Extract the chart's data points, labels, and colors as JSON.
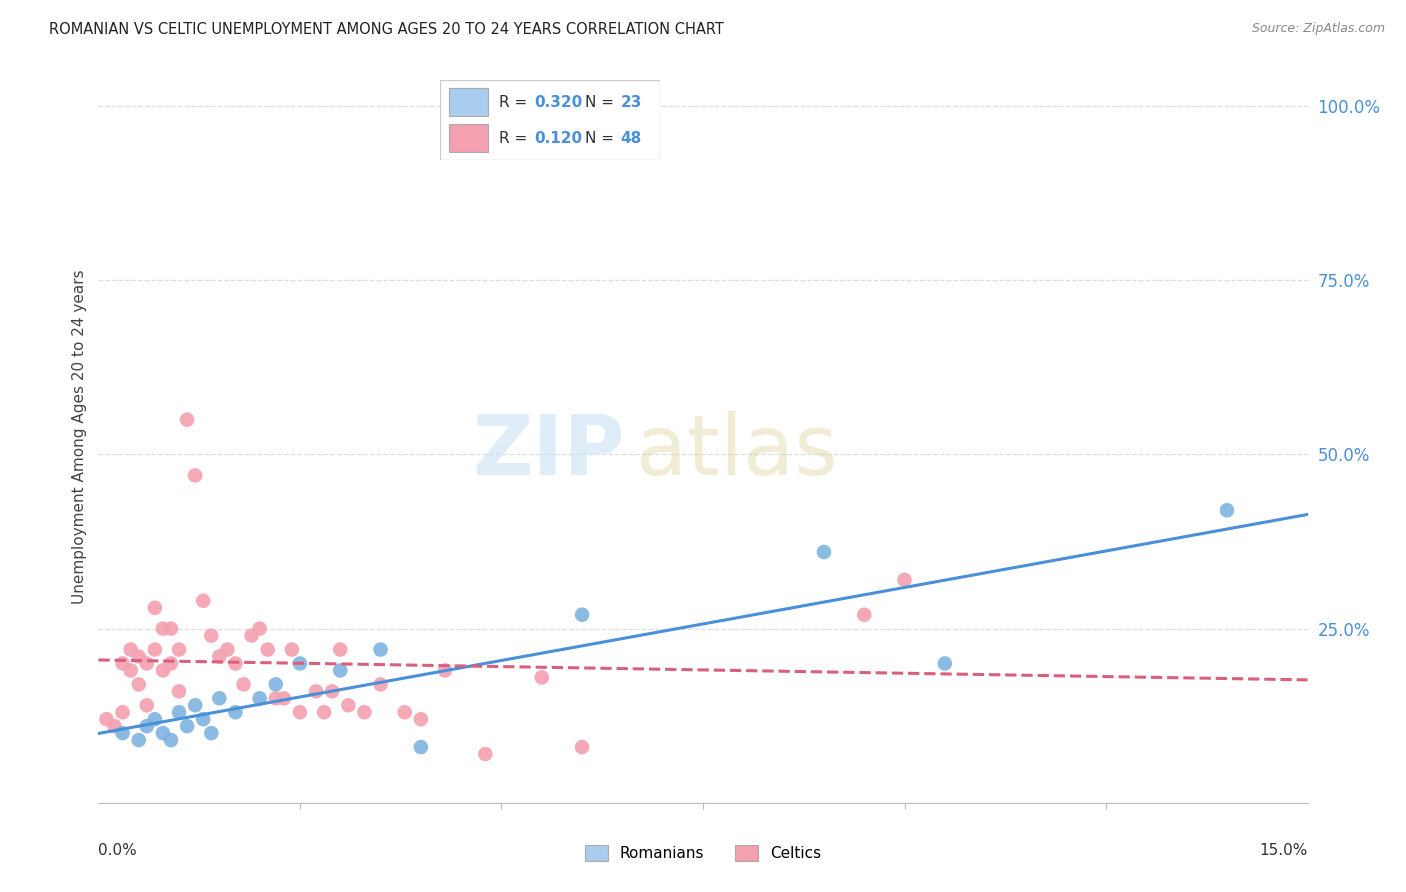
{
  "title": "ROMANIAN VS CELTIC UNEMPLOYMENT AMONG AGES 20 TO 24 YEARS CORRELATION CHART",
  "source": "Source: ZipAtlas.com",
  "ylabel": "Unemployment Among Ages 20 to 24 years",
  "right_ytick_vals": [
    1.0,
    0.75,
    0.5,
    0.25
  ],
  "right_ytick_labels": [
    "100.0%",
    "75.0%",
    "50.0%",
    "25.0%"
  ],
  "xmin": 0.0,
  "xmax": 0.15,
  "ymin": 0.0,
  "ymax": 1.05,
  "romanian_color": "#7eb3e0",
  "celtic_color": "#f4a0b0",
  "romanian_line_color": "#4a90d9",
  "celtic_line_color": "#d9607a",
  "romanian_R": "0.320",
  "romanian_N": "23",
  "celtic_R": "0.120",
  "celtic_N": "48",
  "romanians_scatter": [
    [
      0.003,
      0.1
    ],
    [
      0.005,
      0.09
    ],
    [
      0.006,
      0.11
    ],
    [
      0.007,
      0.12
    ],
    [
      0.008,
      0.1
    ],
    [
      0.009,
      0.09
    ],
    [
      0.01,
      0.13
    ],
    [
      0.011,
      0.11
    ],
    [
      0.012,
      0.14
    ],
    [
      0.013,
      0.12
    ],
    [
      0.014,
      0.1
    ],
    [
      0.015,
      0.15
    ],
    [
      0.017,
      0.13
    ],
    [
      0.02,
      0.15
    ],
    [
      0.022,
      0.17
    ],
    [
      0.025,
      0.2
    ],
    [
      0.03,
      0.19
    ],
    [
      0.035,
      0.22
    ],
    [
      0.04,
      0.08
    ],
    [
      0.06,
      0.27
    ],
    [
      0.09,
      0.36
    ],
    [
      0.105,
      0.2
    ],
    [
      0.14,
      0.42
    ]
  ],
  "celtics_scatter": [
    [
      0.001,
      0.12
    ],
    [
      0.002,
      0.11
    ],
    [
      0.003,
      0.13
    ],
    [
      0.003,
      0.2
    ],
    [
      0.004,
      0.22
    ],
    [
      0.004,
      0.19
    ],
    [
      0.005,
      0.21
    ],
    [
      0.005,
      0.17
    ],
    [
      0.006,
      0.2
    ],
    [
      0.006,
      0.14
    ],
    [
      0.007,
      0.28
    ],
    [
      0.007,
      0.22
    ],
    [
      0.008,
      0.25
    ],
    [
      0.008,
      0.19
    ],
    [
      0.009,
      0.25
    ],
    [
      0.009,
      0.2
    ],
    [
      0.01,
      0.22
    ],
    [
      0.01,
      0.16
    ],
    [
      0.011,
      0.55
    ],
    [
      0.012,
      0.47
    ],
    [
      0.013,
      0.29
    ],
    [
      0.014,
      0.24
    ],
    [
      0.015,
      0.21
    ],
    [
      0.016,
      0.22
    ],
    [
      0.017,
      0.2
    ],
    [
      0.018,
      0.17
    ],
    [
      0.019,
      0.24
    ],
    [
      0.02,
      0.25
    ],
    [
      0.021,
      0.22
    ],
    [
      0.022,
      0.15
    ],
    [
      0.023,
      0.15
    ],
    [
      0.024,
      0.22
    ],
    [
      0.025,
      0.13
    ],
    [
      0.027,
      0.16
    ],
    [
      0.028,
      0.13
    ],
    [
      0.029,
      0.16
    ],
    [
      0.03,
      0.22
    ],
    [
      0.031,
      0.14
    ],
    [
      0.033,
      0.13
    ],
    [
      0.035,
      0.17
    ],
    [
      0.038,
      0.13
    ],
    [
      0.04,
      0.12
    ],
    [
      0.043,
      0.19
    ],
    [
      0.048,
      0.07
    ],
    [
      0.055,
      0.18
    ],
    [
      0.06,
      0.08
    ],
    [
      0.095,
      0.27
    ],
    [
      0.1,
      0.32
    ]
  ],
  "grid_color": "#dddddd",
  "legend_romanian_color": "#aaccee",
  "legend_celtic_color": "#f4a0b0"
}
